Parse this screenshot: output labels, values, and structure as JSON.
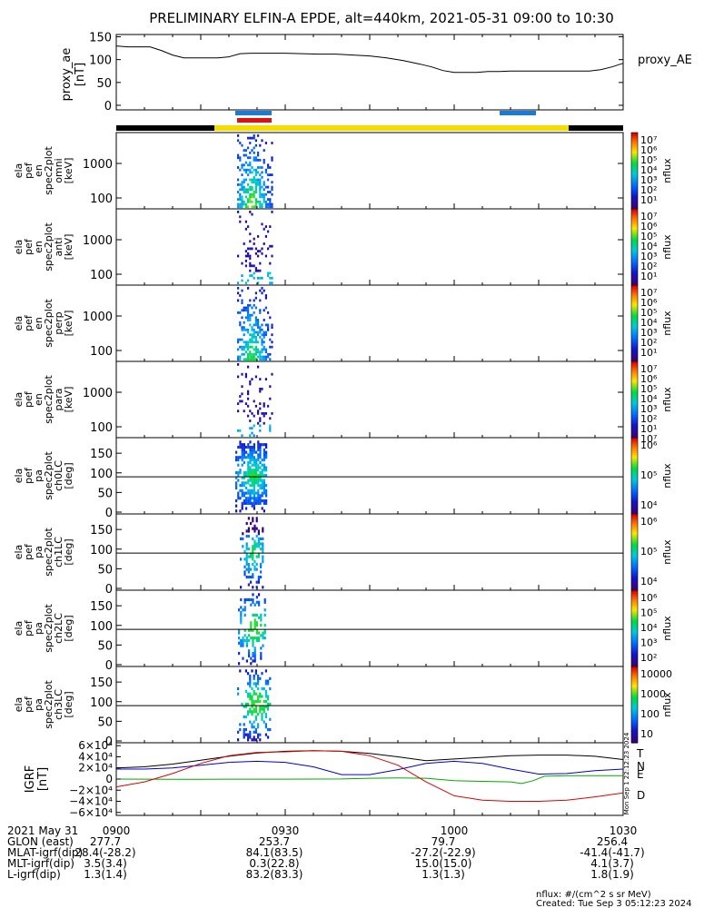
{
  "title": "PRELIMINARY ELFIN-A EPDE, alt=440km, 2021-05-31 09:00 to 10:30",
  "colors": {
    "ae": "#000000",
    "blue_bar": "#1a7ad9",
    "red_bar": "#e01010",
    "yellow": "#f5dc00",
    "black": "#000000",
    "T": "#000000",
    "N": "#0000cc",
    "E": "#00aa00",
    "D": "#dd0000"
  },
  "proxy_ae": {
    "ylabel_1": "proxy_ae",
    "ylabel_2": "[nT]",
    "legend": "proxy_AE",
    "ticks": [
      "150",
      "100",
      "50",
      "0"
    ],
    "tick_values": [
      150,
      100,
      50,
      0
    ],
    "ylim": [
      -10,
      155
    ]
  },
  "energy_panels": [
    {
      "label": [
        "ela",
        "pef",
        "en",
        "spec2plot",
        "omni",
        "[keV]"
      ],
      "ticks": [
        "1000",
        "100"
      ],
      "strength": 1.0
    },
    {
      "label": [
        "ela",
        "pef",
        "en",
        "spec2plot",
        "anti",
        "[keV]"
      ],
      "ticks": [
        "1000",
        "100"
      ],
      "strength": 0.35
    },
    {
      "label": [
        "ela",
        "pef",
        "en",
        "spec2plot",
        "perp",
        "[keV]"
      ],
      "ticks": [
        "1000",
        "100"
      ],
      "strength": 0.9
    },
    {
      "label": [
        "ela",
        "pef",
        "en",
        "spec2plot",
        "para",
        "[keV]"
      ],
      "ticks": [
        "1000",
        "100"
      ],
      "strength": 0.35
    }
  ],
  "energy_colorbar": {
    "unit": "nflux",
    "labels": [
      "10⁷",
      "10⁶",
      "10⁵",
      "10⁴",
      "10³",
      "10²",
      "10¹"
    ]
  },
  "pa_panels": [
    {
      "label": [
        "ela",
        "pef",
        "pa",
        "spec2plot",
        "ch0LC",
        "[deg]"
      ],
      "ticks": [
        "150",
        "100",
        "50",
        "0"
      ],
      "cb_labels": [
        "10⁶",
        "10⁵",
        "10⁴"
      ],
      "cb_top": "10⁷"
    },
    {
      "label": [
        "ela",
        "pef",
        "pa",
        "spec2plot",
        "ch1LC",
        "[deg]"
      ],
      "ticks": [
        "150",
        "100",
        "50",
        "0"
      ],
      "cb_labels": [
        "10⁶",
        "10⁵",
        "10⁴"
      ],
      "cb_top": ""
    },
    {
      "label": [
        "ela",
        "pef",
        "pa",
        "spec2plot",
        "ch2LC",
        "[deg]"
      ],
      "ticks": [
        "150",
        "100",
        "50",
        "0"
      ],
      "cb_labels": [
        "10⁶",
        "10⁵",
        "10⁴",
        "10³",
        "10²"
      ],
      "cb_top": ""
    },
    {
      "label": [
        "ela",
        "pef",
        "pa",
        "spec2plot",
        "ch3LC",
        "[deg]"
      ],
      "ticks": [
        "150",
        "100",
        "50",
        "0"
      ],
      "cb_labels": [
        "10000",
        "1000",
        "100",
        "10"
      ],
      "cb_top": ""
    }
  ],
  "pa_colorbar_unit": "nflux",
  "igrf": {
    "ylabel_1": "IGRF",
    "ylabel_2": "[nT]",
    "ticks": [
      "6×10⁴",
      "4×10⁴",
      "2×10⁴",
      "0",
      "−2×10⁴",
      "−4×10⁴",
      "−6×10⁴"
    ],
    "tick_values": [
      60000,
      40000,
      20000,
      0,
      -20000,
      -40000,
      -60000
    ],
    "legend": [
      "T",
      "N",
      "E",
      "D"
    ],
    "side_text": "Mon Sep 1 22:12:23 2024"
  },
  "x_axis": {
    "ticks": [
      "0900",
      "0930",
      "1000",
      "1030"
    ],
    "tick_minutes": [
      0,
      30,
      60,
      90
    ]
  },
  "footer": {
    "rows": [
      {
        "name": "2021 May 31",
        "vals": [
          "0900",
          "0930",
          "1000",
          "1030"
        ]
      },
      {
        "name": "GLON (east)",
        "vals": [
          "277.7",
          "253.7",
          "79.7",
          "256.4"
        ]
      },
      {
        "name": "MLAT-igrf(dip)",
        "vals": [
          "28.4(-28.2)",
          "84.1(83.5)",
          "-27.2(-22.9)",
          "-41.4(-41.7)"
        ]
      },
      {
        "name": "MLT-igrf(dip)",
        "vals": [
          "3.5(3.4)",
          "0.3(22.8)",
          "15.0(15.0)",
          "4.1(3.7)"
        ]
      },
      {
        "name": "L-igrf(dip)",
        "vals": [
          "1.3(1.4)",
          "83.2(83.3)",
          "1.3(1.3)",
          "1.8(1.9)"
        ]
      }
    ],
    "note_1": "nflux: #/(cm^2 s sr MeV)",
    "note_2": "Created: Tue Sep  3 05:12:23 2024"
  },
  "chart_data": {
    "type": "line",
    "title": "PRELIMINARY ELFIN-A EPDE, alt=440km, 2021-05-31 09:00 to 10:30",
    "x_unit": "minutes after 09:00",
    "x_range": [
      0,
      90
    ],
    "series": [
      {
        "name": "proxy_AE",
        "x": [
          0,
          2,
          4,
          6,
          8,
          10,
          12,
          14,
          16,
          18,
          20,
          22,
          24,
          26,
          28,
          30,
          33,
          36,
          39,
          42,
          45,
          48,
          51,
          54,
          56,
          58,
          60,
          62,
          64,
          66,
          68,
          70,
          72,
          74,
          76,
          78,
          80,
          82,
          84,
          86,
          88,
          90
        ],
        "y": [
          130,
          128,
          128,
          128,
          120,
          110,
          104,
          104,
          104,
          104,
          106,
          113,
          114,
          114,
          114,
          114,
          113,
          112,
          112,
          110,
          108,
          104,
          98,
          90,
          84,
          76,
          72,
          72,
          72,
          74,
          74,
          75,
          75,
          75,
          75,
          75,
          75,
          75,
          75,
          78,
          84,
          92
        ]
      },
      {
        "name": "T",
        "x": [
          0,
          5,
          10,
          15,
          20,
          25,
          30,
          35,
          40,
          45,
          50,
          55,
          60,
          65,
          70,
          75,
          80,
          85,
          90
        ],
        "y": [
          20000,
          22000,
          27000,
          34000,
          41000,
          47000,
          50000,
          51000,
          50000,
          46000,
          40000,
          33000,
          36000,
          39000,
          42000,
          43000,
          43000,
          41000,
          35000
        ]
      },
      {
        "name": "N",
        "x": [
          0,
          5,
          10,
          15,
          20,
          25,
          30,
          35,
          40,
          45,
          50,
          55,
          60,
          65,
          70,
          75,
          80,
          85,
          90
        ],
        "y": [
          18000,
          18000,
          20000,
          25000,
          30000,
          32000,
          30000,
          22000,
          8000,
          8000,
          17000,
          28000,
          32000,
          28000,
          18000,
          9000,
          10000,
          15000,
          18000
        ]
      },
      {
        "name": "E",
        "x": [
          0,
          5,
          10,
          15,
          20,
          25,
          30,
          35,
          40,
          45,
          50,
          55,
          60,
          65,
          70,
          72,
          74,
          76,
          80,
          85,
          90
        ],
        "y": [
          0,
          -200,
          -400,
          -300,
          -200,
          -100,
          -100,
          0,
          200,
          1500,
          2000,
          1500,
          -3000,
          -4000,
          -5000,
          -8000,
          -3000,
          5000,
          6000,
          6000,
          6000
        ]
      },
      {
        "name": "D",
        "x": [
          0,
          5,
          10,
          15,
          20,
          25,
          30,
          35,
          40,
          45,
          50,
          55,
          60,
          65,
          70,
          75,
          80,
          85,
          90
        ],
        "y": [
          -14000,
          -5000,
          10000,
          28000,
          42000,
          48000,
          49000,
          51000,
          50000,
          42000,
          25000,
          -5000,
          -30000,
          -38000,
          -40000,
          -40000,
          -38000,
          -32000,
          -25000
        ]
      }
    ]
  }
}
